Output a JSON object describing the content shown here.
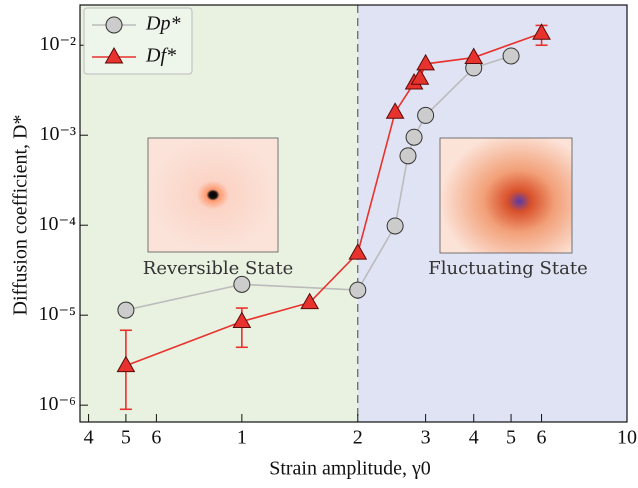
{
  "chart_data": {
    "type": "line",
    "xlabel": "Strain amplitude, γ0",
    "ylabel": "Diffusion coefficient, D*",
    "xscale": "log",
    "yscale": "log",
    "xlim": [
      0.38,
      10
    ],
    "ylim": [
      6.5e-07,
      0.028
    ],
    "xticks": [
      {
        "value": 0.4,
        "label": "4"
      },
      {
        "value": 0.5,
        "label": "5"
      },
      {
        "value": 0.6,
        "label": "6"
      },
      1,
      2,
      3,
      4,
      5,
      6,
      10
    ],
    "yticks": [
      {
        "value": 1e-06,
        "label": "10⁻⁶"
      },
      {
        "value": 1e-05,
        "label": "10⁻⁵"
      },
      {
        "value": 0.0001,
        "label": "10⁻⁴"
      },
      {
        "value": 0.001,
        "label": "10⁻³"
      },
      {
        "value": 0.01,
        "label": "10⁻²"
      }
    ],
    "threshold": 2,
    "regions": [
      {
        "color": "#e9f2e1"
      },
      {
        "color": "#e0e3f3"
      }
    ],
    "legend": "upper left",
    "annotations": [
      "Reversible State",
      "Fluctuating State"
    ],
    "series": [
      {
        "name": "Dp*",
        "color": "#bbbbbb",
        "marker": "circle",
        "x": [
          0.5,
          1,
          2,
          2.5,
          2.7,
          2.8,
          3,
          4,
          5
        ],
        "values": [
          1.14e-05,
          2.2e-05,
          1.9e-05,
          9.8e-05,
          0.00059,
          0.00095,
          0.00166,
          0.0056,
          0.0076
        ]
      },
      {
        "name": "Df*",
        "color": "#e8322d",
        "marker": "triangle",
        "x": [
          0.5,
          1,
          1.5,
          2,
          2.5,
          2.8,
          2.9,
          3,
          4,
          6
        ],
        "values": [
          2.75e-06,
          8.5e-06,
          1.38e-05,
          4.9e-05,
          0.0018,
          0.0038,
          0.0043,
          0.0062,
          0.0073,
          0.0136
        ],
        "error_lower": [
          9e-07,
          4.4e-06,
          null,
          null,
          null,
          null,
          null,
          null,
          null,
          0.01
        ],
        "error_upper": [
          6.8e-06,
          1.2e-05,
          null,
          null,
          null,
          null,
          null,
          null,
          null,
          0.0166
        ]
      }
    ]
  }
}
